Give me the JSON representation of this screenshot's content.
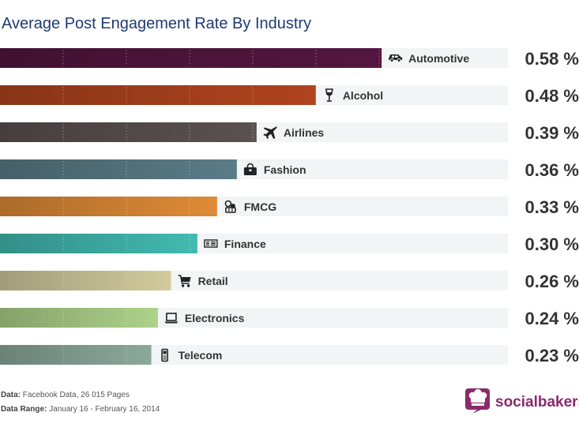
{
  "chart_data": {
    "type": "bar",
    "orientation": "horizontal",
    "title": "Average Post Engagement Rate By Industry",
    "categories": [
      "Automotive",
      "Alcohol",
      "Airlines",
      "Fashion",
      "FMCG",
      "Finance",
      "Retail",
      "Electronics",
      "Telecom"
    ],
    "values": [
      0.58,
      0.48,
      0.39,
      0.36,
      0.33,
      0.3,
      0.26,
      0.24,
      0.23
    ],
    "value_labels": [
      "0.58 %",
      "0.48 %",
      "0.39 %",
      "0.36 %",
      "0.33 %",
      "0.30 %",
      "0.26 %",
      "0.24 %",
      "0.23 %"
    ],
    "unit": "%",
    "xlim": [
      0,
      0.88
    ],
    "colors": [
      "#4a1338",
      "#9a3c1a",
      "#4f4748",
      "#4f6d76",
      "#c47a30",
      "#3aa39a",
      "#b8b28a",
      "#98b879",
      "#7a9488"
    ],
    "track_color": "#f3f4f5",
    "icons": [
      "car-icon",
      "wine-glass-icon",
      "airplane-icon",
      "handbag-icon",
      "basket-icon",
      "banknotes-icon",
      "shopping-cart-icon",
      "laptop-icon",
      "mobile-phone-icon"
    ]
  },
  "footer": {
    "source_key": "Data:",
    "source_value": "Facebook Data, 26 015 Pages",
    "range_key": "Data Range:",
    "range_value": "January 16 - February 16, 2014"
  },
  "brand": {
    "name": "socialbakers",
    "color": "#8a2a6a"
  }
}
